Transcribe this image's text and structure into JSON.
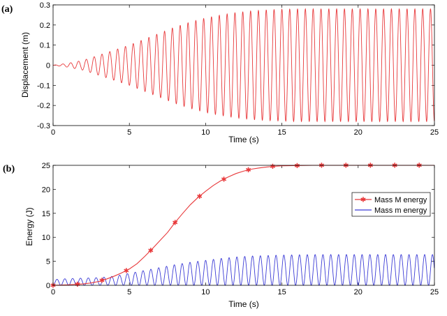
{
  "chart_data": [
    {
      "type": "line",
      "panel_label": "(a)",
      "xlabel": "Time (s)",
      "ylabel": "Displacement (m)",
      "xlim": [
        0,
        25
      ],
      "ylim": [
        -0.3,
        0.3
      ],
      "xticks": [
        0,
        5,
        10,
        15,
        20,
        25
      ],
      "yticks": [
        0.3,
        0.2,
        0.1,
        0,
        -0.1,
        -0.2,
        -0.3
      ],
      "grid": false,
      "series": [
        {
          "name": "Displacement",
          "color": "#e8383a",
          "envelope_time": [
            0,
            1,
            2,
            3,
            4,
            5,
            6,
            7,
            8,
            9,
            10,
            11,
            12,
            13,
            14,
            15,
            16,
            17,
            18,
            19,
            20,
            21,
            22,
            23,
            24,
            25
          ],
          "envelope_amplitude": [
            0,
            0.01,
            0.025,
            0.05,
            0.075,
            0.1,
            0.13,
            0.16,
            0.19,
            0.215,
            0.235,
            0.25,
            0.262,
            0.27,
            0.275,
            0.278,
            0.28,
            0.28,
            0.28,
            0.28,
            0.28,
            0.28,
            0.28,
            0.28,
            0.28,
            0.28
          ],
          "oscillation_frequency_hz": 1.95
        }
      ]
    },
    {
      "type": "line",
      "panel_label": "(b)",
      "xlabel": "Time (s)",
      "ylabel": "Energy (J)",
      "xlim": [
        0,
        25
      ],
      "ylim": [
        0,
        25
      ],
      "xticks": [
        0,
        5,
        10,
        15,
        20,
        25
      ],
      "yticks": [
        25,
        20,
        15,
        10,
        5,
        0
      ],
      "grid": false,
      "legend_position": "right",
      "series": [
        {
          "name": "Mass M energy",
          "color": "#e8383a",
          "marker": "*",
          "x": [
            0,
            0.5,
            1,
            1.5,
            2,
            2.5,
            3,
            3.5,
            4,
            4.5,
            5,
            5.5,
            6,
            6.5,
            7,
            7.5,
            8,
            8.5,
            9,
            9.5,
            10,
            10.5,
            11,
            11.5,
            12,
            12.5,
            13,
            13.5,
            14,
            14.5,
            15,
            16,
            17,
            18,
            19,
            20,
            21,
            22,
            23,
            24,
            25
          ],
          "y": [
            0,
            0.05,
            0.1,
            0.2,
            0.3,
            0.5,
            0.8,
            1.3,
            1.9,
            2.6,
            3.4,
            4.5,
            6.0,
            7.6,
            9.3,
            11.0,
            13.1,
            15.0,
            16.8,
            18.3,
            19.6,
            20.8,
            21.8,
            22.6,
            23.3,
            23.8,
            24.2,
            24.45,
            24.65,
            24.8,
            24.9,
            24.95,
            25.0,
            25.0,
            25.0,
            25.0,
            25.0,
            25.0,
            25.0,
            25.0,
            25.0
          ],
          "marker_x": [
            0,
            1.6,
            3.2,
            4.8,
            6.4,
            8.0,
            9.6,
            11.2,
            12.8,
            14.4,
            16.0,
            17.6,
            19.2,
            20.8,
            22.4,
            24.0
          ]
        },
        {
          "name": "Mass m energy",
          "color": "#3b3bd6",
          "envelope_time": [
            0,
            1,
            2,
            3,
            4,
            5,
            6,
            7,
            8,
            9,
            10,
            11,
            12,
            13,
            14,
            15,
            16,
            17,
            18,
            19,
            20,
            21,
            22,
            23,
            24,
            25
          ],
          "envelope_peak": [
            1.2,
            1.4,
            1.5,
            1.6,
            1.9,
            2.5,
            3.1,
            3.7,
            4.3,
            4.8,
            5.2,
            5.6,
            5.9,
            6.1,
            6.2,
            6.3,
            6.35,
            6.4,
            6.4,
            6.4,
            6.4,
            6.4,
            6.4,
            6.4,
            6.4,
            6.4
          ],
          "oscillation_frequency_hz": 1.95
        }
      ]
    }
  ]
}
